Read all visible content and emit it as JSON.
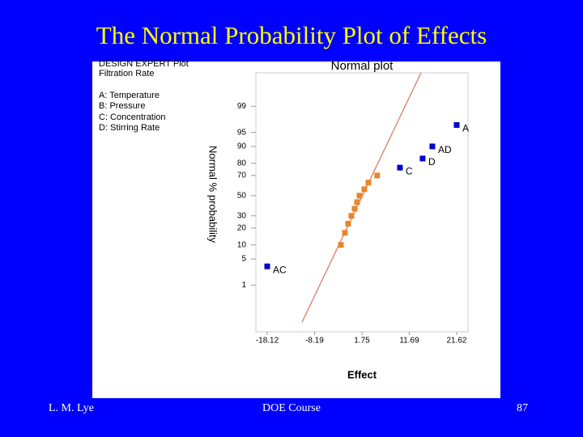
{
  "slide": {
    "title": "The Normal Probability Plot of Effects",
    "footer_left": "L. M. Lye",
    "footer_center": "DOE Course",
    "footer_right": "87"
  },
  "chart_data": {
    "type": "scatter",
    "header": [
      "DESIGN EXPERT Plot",
      "Filtration Rate"
    ],
    "factors": [
      "A: Temperature",
      "B: Pressure",
      "C: Concentration",
      "D: Stirring Rate"
    ],
    "title": "Normal plot",
    "xlabel": "Effect",
    "ylabel": "Normal % probability",
    "y_scale": "probit",
    "xlim": [
      -20.5,
      24.0
    ],
    "xticks": [
      -18.12,
      -8.19,
      1.75,
      11.69,
      21.62
    ],
    "ylim": [
      0.02,
      99.93
    ],
    "yticks": [
      1,
      5,
      10,
      20,
      30,
      50,
      70,
      80,
      90,
      95,
      99
    ],
    "series": [
      {
        "color": "#0000cc",
        "x": [
          21.62,
          16.52,
          14.48,
          9.72,
          -18.12
        ],
        "values": [
          96.7,
          90,
          83.3,
          76.7,
          3.3
        ],
        "labels": [
          "A",
          "AD",
          "D",
          "C",
          "AC"
        ]
      },
      {
        "color": "#e8862a",
        "x": [
          -2.67,
          -1.82,
          -1.14,
          -0.46,
          0.22,
          0.73,
          1.24,
          2.25,
          3.1,
          4.95
        ],
        "values": [
          10,
          16.7,
          23.3,
          30,
          36.7,
          43.3,
          50,
          56.7,
          63.3,
          70
        ]
      }
    ],
    "reference_line": {
      "color": "#e07a6a",
      "x": [
        -10.82,
        14.14
      ],
      "y": [
        0.05,
        99.93
      ]
    }
  }
}
